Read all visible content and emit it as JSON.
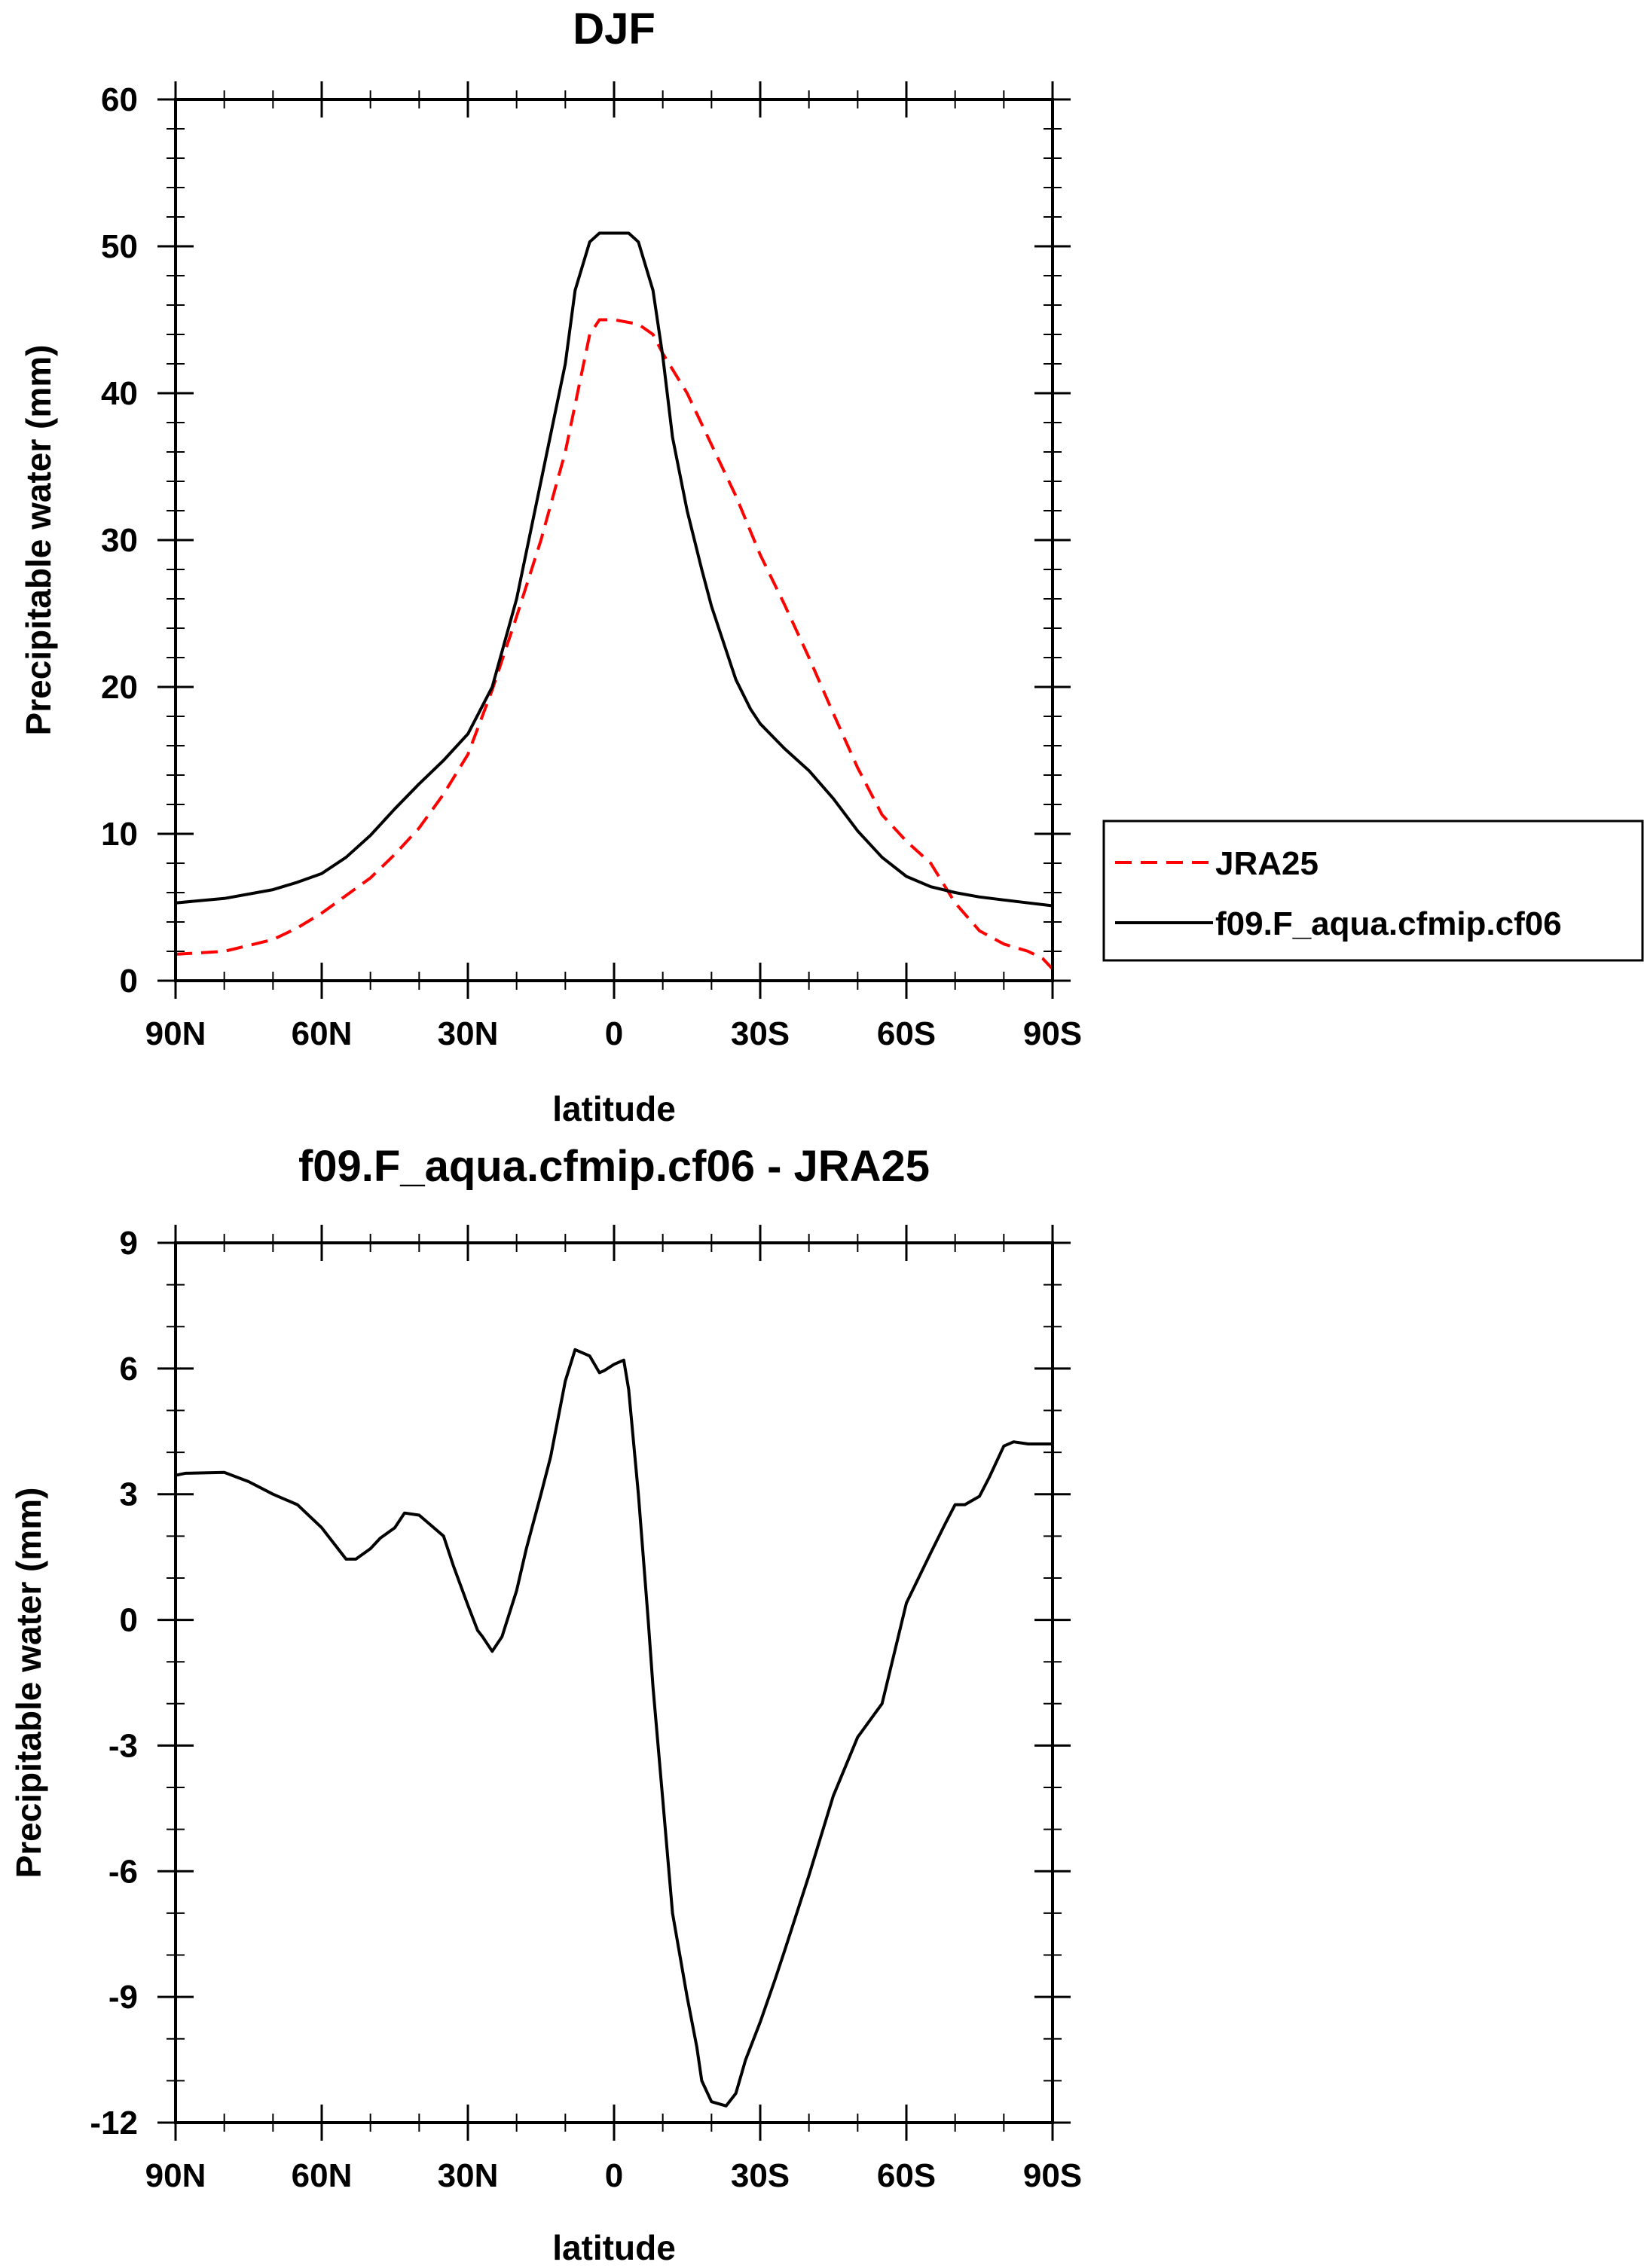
{
  "chart_data": [
    {
      "type": "line",
      "title": "DJF",
      "xlabel": "latitude",
      "ylabel": "Precipitable water (mm)",
      "xlim": [
        90,
        -90
      ],
      "ylim": [
        0,
        60
      ],
      "x_ticks": [
        90,
        60,
        30,
        0,
        -30,
        -60,
        -90
      ],
      "x_tick_labels": [
        "90N",
        "60N",
        "30N",
        "0",
        "30S",
        "60S",
        "90S"
      ],
      "y_ticks": [
        0,
        10,
        20,
        30,
        40,
        50,
        60
      ],
      "y_tick_labels": [
        "0",
        "10",
        "20",
        "30",
        "40",
        "50",
        "60"
      ],
      "y_minor_step": 2,
      "x_minor_step": 10,
      "legend_position": "right",
      "series": [
        {
          "name": "JRA25",
          "color": "#ff0000",
          "dash": "dashed",
          "x": [
            90,
            80,
            70,
            65,
            60,
            55,
            50,
            45,
            40,
            35,
            30,
            25,
            20,
            15,
            10,
            5,
            3,
            0,
            -5,
            -8,
            -10,
            -15,
            -20,
            -25,
            -30,
            -35,
            -40,
            -45,
            -50,
            -55,
            -60,
            -65,
            -70,
            -75,
            -80,
            -85,
            -88,
            -90
          ],
          "values": [
            1.8,
            2.0,
            2.8,
            3.6,
            4.6,
            5.8,
            7.0,
            8.6,
            10.4,
            12.7,
            15.4,
            19.8,
            24.8,
            30.0,
            36.0,
            44.0,
            45.0,
            45.0,
            44.7,
            44.0,
            42.7,
            40.0,
            36.5,
            33.0,
            29.0,
            25.6,
            22.0,
            18.2,
            14.5,
            11.3,
            9.5,
            8.0,
            5.3,
            3.4,
            2.5,
            2.0,
            1.5,
            0.8
          ]
        },
        {
          "name": "f09.F_aqua.cfmip.cf06",
          "color": "#000000",
          "dash": "solid",
          "x": [
            90,
            80,
            70,
            65,
            60,
            55,
            50,
            45,
            40,
            35,
            30,
            25,
            20,
            15,
            10,
            8,
            5,
            3,
            0,
            -3,
            -5,
            -8,
            -10,
            -12,
            -15,
            -18,
            -20,
            -23,
            -25,
            -28,
            -30,
            -35,
            -40,
            -45,
            -50,
            -55,
            -60,
            -65,
            -70,
            -75,
            -80,
            -85,
            -90
          ],
          "values": [
            5.3,
            5.6,
            6.2,
            6.7,
            7.3,
            8.4,
            9.9,
            11.7,
            13.4,
            15.0,
            16.8,
            20.0,
            26.0,
            34.0,
            42.0,
            47.0,
            50.3,
            50.9,
            50.9,
            50.9,
            50.3,
            47.0,
            42.5,
            37.0,
            32.0,
            28.0,
            25.5,
            22.5,
            20.5,
            18.5,
            17.5,
            15.8,
            14.3,
            12.4,
            10.2,
            8.4,
            7.1,
            6.4,
            6.0,
            5.7,
            5.5,
            5.3,
            5.1
          ]
        }
      ]
    },
    {
      "type": "line",
      "title": "f09.F_aqua.cfmip.cf06 - JRA25",
      "xlabel": "latitude",
      "ylabel": "Precipitable water (mm)",
      "xlim": [
        90,
        -90
      ],
      "ylim": [
        -12,
        9
      ],
      "x_ticks": [
        90,
        60,
        30,
        0,
        -30,
        -60,
        -90
      ],
      "x_tick_labels": [
        "90N",
        "60N",
        "30N",
        "0",
        "30S",
        "60S",
        "90S"
      ],
      "y_ticks": [
        -12,
        -9,
        -6,
        -3,
        0,
        3,
        6,
        9
      ],
      "y_tick_labels": [
        "-12",
        "-9",
        "-6",
        "-3",
        "0",
        "3",
        "6",
        "9"
      ],
      "y_minor_step": 1,
      "x_minor_step": 10,
      "series": [
        {
          "name": "f09.F_aqua.cfmip.cf06 - JRA25",
          "color": "#000000",
          "dash": "solid",
          "x": [
            90,
            88,
            80,
            75,
            70,
            65,
            60,
            58,
            55,
            53,
            50,
            48,
            45,
            43,
            40,
            38,
            35,
            33,
            30,
            28,
            27,
            25,
            23,
            20,
            18,
            15,
            13,
            10,
            8,
            7,
            5,
            3,
            2,
            0,
            -2,
            -3,
            -5,
            -7,
            -8,
            -10,
            -12,
            -15,
            -17,
            -18,
            -20,
            -23,
            -25,
            -27,
            -30,
            -33,
            -35,
            -40,
            -45,
            -50,
            -55,
            -60,
            -65,
            -68,
            -70,
            -72,
            -75,
            -77,
            -80,
            -82,
            -85,
            -88,
            -90
          ],
          "values": [
            3.45,
            3.5,
            3.52,
            3.3,
            3.0,
            2.75,
            2.2,
            1.9,
            1.45,
            1.45,
            1.7,
            1.95,
            2.2,
            2.55,
            2.5,
            2.3,
            2.0,
            1.3,
            0.35,
            -0.25,
            -0.4,
            -0.75,
            -0.4,
            0.7,
            1.7,
            3.0,
            3.9,
            5.7,
            6.45,
            6.4,
            6.3,
            5.9,
            5.95,
            6.1,
            6.2,
            5.5,
            3.0,
            0.0,
            -1.6,
            -4.3,
            -7.0,
            -9.0,
            -10.2,
            -11.0,
            -11.5,
            -11.6,
            -11.3,
            -10.5,
            -9.6,
            -8.6,
            -7.9,
            -6.1,
            -4.2,
            -2.8,
            -2.0,
            0.4,
            1.6,
            2.3,
            2.75,
            2.75,
            2.95,
            3.4,
            4.15,
            4.25,
            4.2,
            4.2,
            4.2
          ]
        }
      ]
    }
  ]
}
